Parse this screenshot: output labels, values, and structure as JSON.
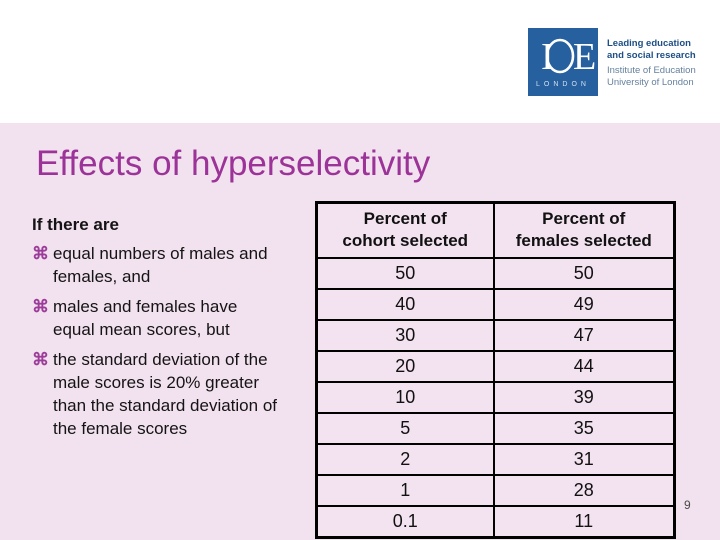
{
  "slide": {
    "title": "Effects of hyperselectivity",
    "page_number": "9"
  },
  "logo": {
    "monogram_i": "I",
    "monogram_e": "E",
    "city": "LONDON",
    "tagline_line1": "Leading education",
    "tagline_line2": "and social research",
    "institution_line1": "Institute of Education",
    "institution_line2": "University of London"
  },
  "body": {
    "intro": "If there are",
    "bullet_char": "⌘",
    "bullets": [
      [
        "equal numbers of males and",
        "females, and"
      ],
      [
        "males and females have",
        "equal mean scores, but"
      ],
      [
        "the standard deviation of the",
        "male scores is 20% greater",
        "than the standard deviation of",
        "the female scores"
      ]
    ]
  },
  "table": {
    "headers": [
      [
        "Percent of",
        "cohort selected"
      ],
      [
        "Percent of",
        "females selected"
      ]
    ],
    "rows": [
      [
        "50",
        "50"
      ],
      [
        "40",
        "49"
      ],
      [
        "30",
        "47"
      ],
      [
        "20",
        "44"
      ],
      [
        "10",
        "39"
      ],
      [
        "5",
        "35"
      ],
      [
        "2",
        "31"
      ],
      [
        "1",
        "28"
      ],
      [
        "0.1",
        "11"
      ]
    ]
  },
  "chart_data": {
    "type": "table",
    "title": "Effects of hyperselectivity",
    "columns": [
      "Percent of cohort selected",
      "Percent of females selected"
    ],
    "x": [
      50,
      40,
      30,
      20,
      10,
      5,
      2,
      1,
      0.1
    ],
    "series": [
      {
        "name": "Percent of females selected",
        "values": [
          50,
          49,
          47,
          44,
          39,
          35,
          31,
          28,
          11
        ]
      }
    ]
  },
  "colors": {
    "background_pink": "#f2e1ef",
    "title_magenta": "#9c3398",
    "bullet_purple": "#9c3d9a",
    "logo_blue": "#27609f",
    "tagline_blue": "#1d4e85",
    "institution_blue": "#64809f"
  }
}
